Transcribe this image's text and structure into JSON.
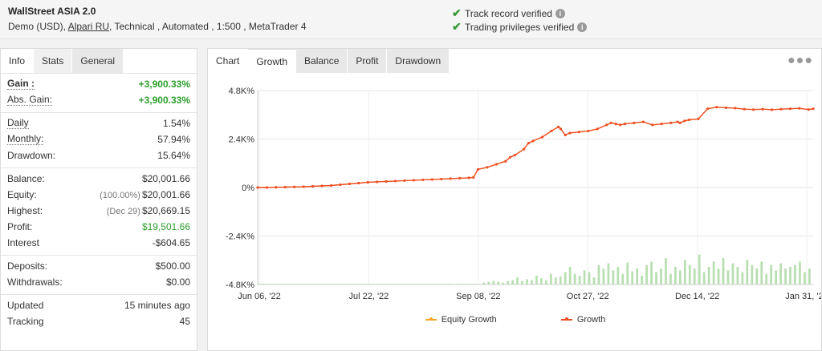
{
  "header": {
    "title": "WallStreet ASIA 2.0",
    "meta_prefix": "Demo (USD),",
    "broker": "Alpari RU",
    "meta_suffix": ", Technical , Automated , 1:500 , MetaTrader 4",
    "verify": [
      "Track record verified",
      "Trading privileges verified"
    ]
  },
  "left_tabs": [
    "Info",
    "Stats",
    "General"
  ],
  "stats": {
    "gain": {
      "label": "Gain :",
      "value": "+3,900.33%"
    },
    "abs_gain": {
      "label": "Abs. Gain:",
      "value": "+3,900.33%"
    },
    "daily": {
      "label": "Daily",
      "value": "1.54%"
    },
    "monthly": {
      "label": "Monthly:",
      "value": "57.94%"
    },
    "drawdown": {
      "label": "Drawdown:",
      "value": "15.64%"
    },
    "balance": {
      "label": "Balance:",
      "value": "$20,001.66"
    },
    "equity": {
      "label": "Equity:",
      "note": "(100.00%)",
      "value": "$20,001.66"
    },
    "highest": {
      "label": "Highest:",
      "note": "(Dec 29)",
      "value": "$20,669.15"
    },
    "profit": {
      "label": "Profit:",
      "value": "$19,501.66"
    },
    "interest": {
      "label": "Interest",
      "value": "-$604.65"
    },
    "deposits": {
      "label": "Deposits:",
      "value": "$500.00"
    },
    "withdrawals": {
      "label": "Withdrawals:",
      "value": "$0.00"
    },
    "updated": {
      "label": "Updated",
      "value": "15 minutes ago"
    },
    "tracking": {
      "label": "Tracking",
      "value": "45"
    }
  },
  "right_tabs": [
    "Chart",
    "Growth",
    "Balance",
    "Profit",
    "Drawdown"
  ],
  "colors": {
    "growth": "#f04e23",
    "equity": "#f5a623",
    "bars": "#b7deb0",
    "check": "#3a9a3a",
    "gain": "#2b9e2b"
  },
  "chart_data": {
    "type": "line",
    "y_ticks": [
      "4.8K%",
      "2.4K%",
      "0%",
      "-2.4K%",
      "-4.8K%"
    ],
    "ylim": [
      -4800,
      4800
    ],
    "x_ticks": [
      "Jun 06, '22",
      "Jul 22, '22",
      "Sep 08, '22",
      "Oct 27, '22",
      "Dec 14, '22",
      "Jan 31, '23"
    ],
    "legend": [
      "Equity Growth",
      "Growth"
    ],
    "series": [
      {
        "name": "Growth",
        "x": [
          0,
          4,
          8,
          12,
          16,
          20,
          24,
          28,
          32,
          36,
          40,
          44,
          48,
          52,
          56,
          60,
          64,
          68,
          72,
          76,
          80,
          84,
          88,
          92,
          94,
          96,
          100,
          104,
          108,
          110,
          112,
          116,
          118,
          120,
          124,
          128,
          131,
          132,
          134,
          136,
          140,
          144,
          148,
          152,
          154,
          156,
          158,
          160,
          164,
          168,
          172,
          176,
          180,
          183,
          184,
          186,
          188,
          192,
          196,
          200,
          204,
          208,
          212,
          216,
          220,
          224,
          228,
          232,
          236,
          240,
          242
        ],
        "values": [
          0,
          0,
          10,
          20,
          30,
          40,
          60,
          80,
          100,
          140,
          180,
          220,
          260,
          280,
          300,
          320,
          340,
          360,
          380,
          400,
          420,
          440,
          460,
          480,
          500,
          900,
          1000,
          1150,
          1300,
          1500,
          1600,
          1900,
          2200,
          2300,
          2500,
          2800,
          3000,
          2900,
          2600,
          2700,
          2750,
          2800,
          2900,
          3100,
          3200,
          3150,
          3100,
          3150,
          3200,
          3250,
          3100,
          3150,
          3200,
          3250,
          3200,
          3300,
          3350,
          3400,
          3900,
          3980,
          3950,
          3930,
          3880,
          3860,
          3880,
          3850,
          3880,
          3900,
          3920,
          3860,
          3900
        ]
      },
      {
        "name": "Equity Growth",
        "note": "overlaps Growth"
      }
    ],
    "volume_bars": [
      0,
      2,
      3,
      4,
      3,
      2,
      4,
      5,
      8,
      4,
      6,
      5,
      10,
      7,
      5,
      12,
      8,
      9,
      14,
      20,
      12,
      10,
      16,
      14,
      8,
      22,
      18,
      24,
      16,
      20,
      12,
      25,
      15,
      18,
      10,
      22,
      26,
      14,
      18,
      30,
      12,
      20,
      16,
      28,
      22,
      18,
      34,
      14,
      20,
      26,
      18,
      30,
      16,
      24,
      20,
      14,
      28,
      22,
      18,
      26,
      12,
      22,
      16,
      24,
      18,
      20,
      22,
      26,
      14,
      18
    ]
  }
}
